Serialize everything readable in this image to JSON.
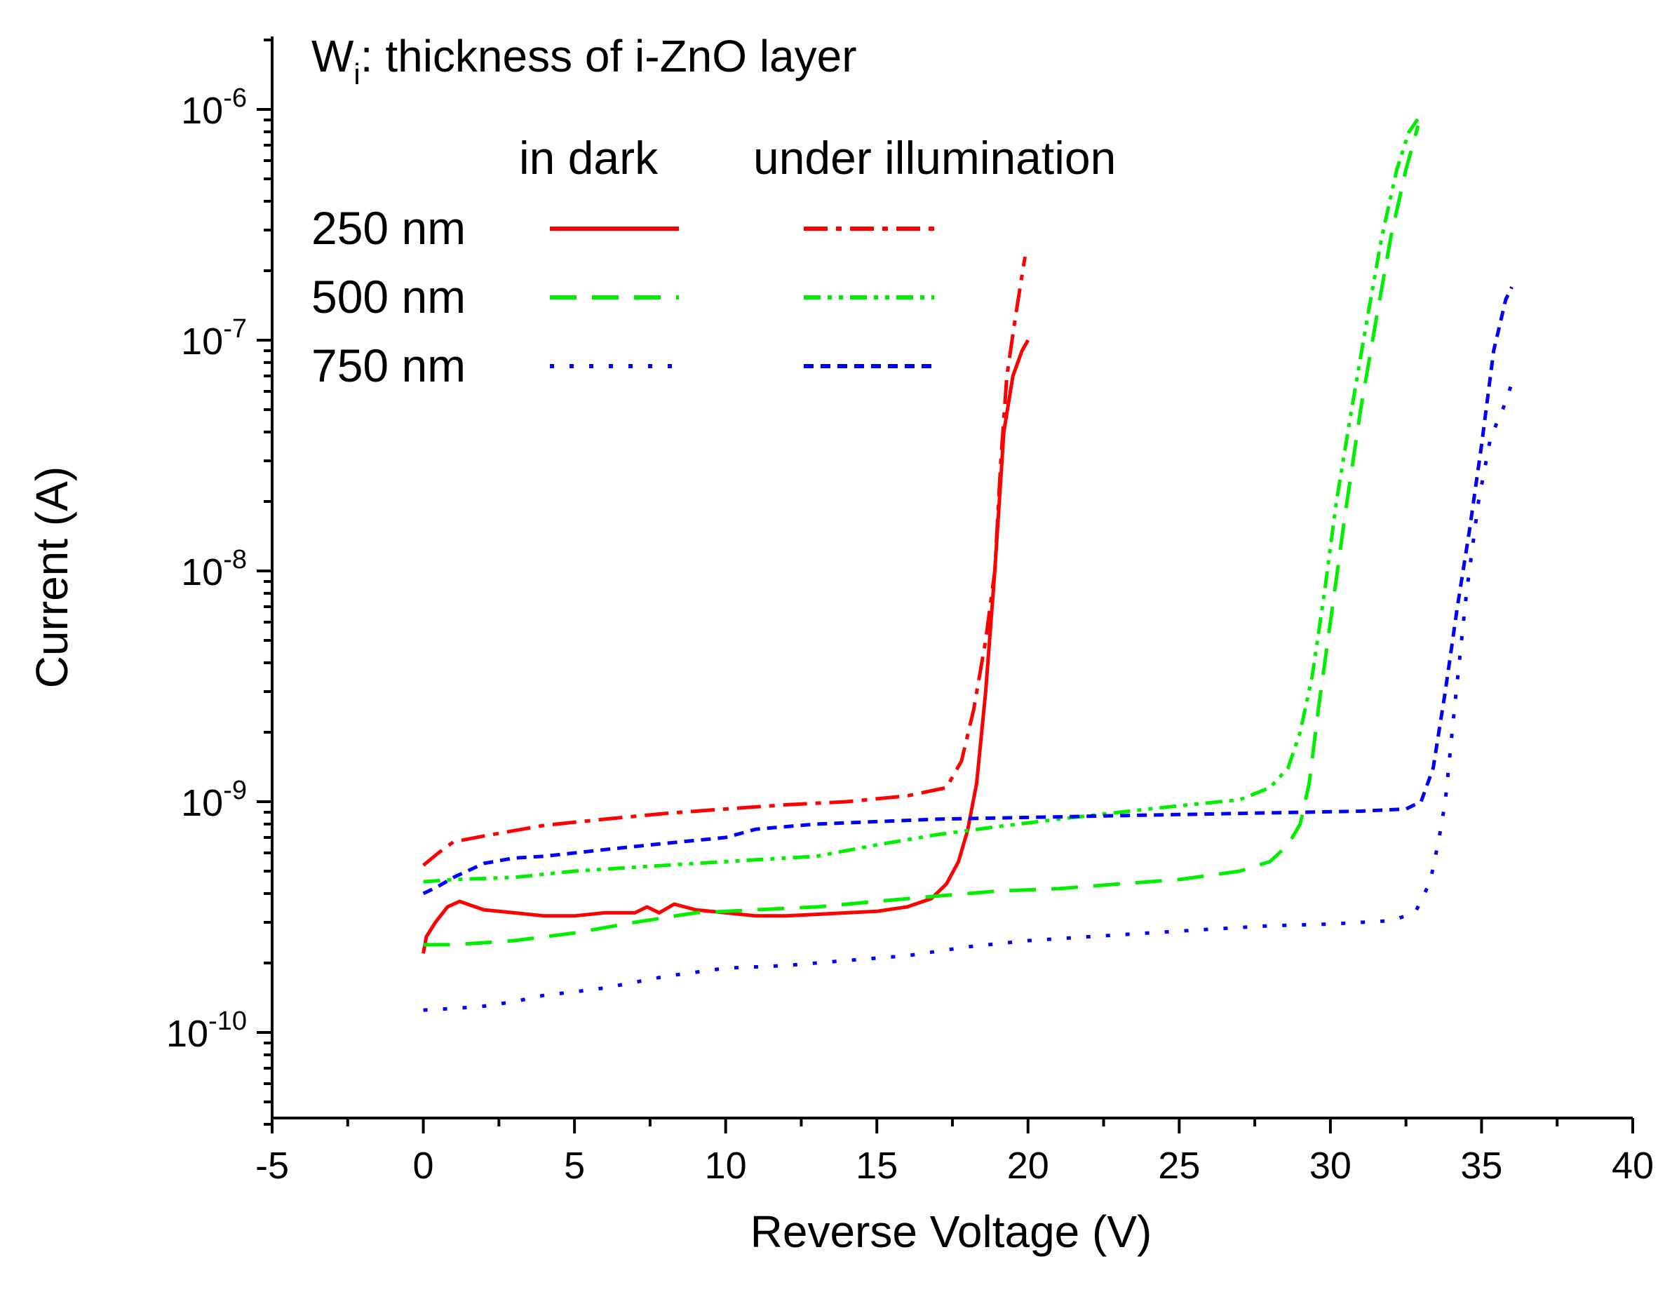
{
  "chart_data": {
    "type": "line",
    "annotation": "W",
    "annotation_sub": "i",
    "annotation_rest": ": thickness of i-ZnO layer",
    "xlabel": "Reverse Voltage (V)",
    "ylabel": "Current (A)",
    "xlim": [
      -5,
      40
    ],
    "ylim": [
      4e-11,
      2e-06
    ],
    "yscale": "log",
    "x_ticks": [
      -5,
      0,
      5,
      10,
      15,
      20,
      25,
      30,
      35,
      40
    ],
    "x_tick_labels": [
      "-5",
      "0",
      "5",
      "10",
      "15",
      "20",
      "25",
      "30",
      "35",
      "40"
    ],
    "y_tick_exponents": [
      -10,
      -9,
      -8,
      -7,
      -6
    ],
    "y_tick_base": "10",
    "y_tick_labels_exp": [
      "-10",
      "-9",
      "-8",
      "-7",
      "-6"
    ],
    "legend": {
      "header_dark": "in dark",
      "header_light": "under illumination",
      "rows": [
        "250 nm",
        "500 nm",
        "750 nm"
      ],
      "placement": "top-left"
    },
    "series": [
      {
        "name": "250 nm in dark",
        "color": "#ff0000",
        "style": "solid",
        "points": [
          [
            0,
            2.2e-10
          ],
          [
            0.1,
            2.6e-10
          ],
          [
            0.4,
            3e-10
          ],
          [
            0.8,
            3.5e-10
          ],
          [
            1.2,
            3.7e-10
          ],
          [
            2,
            3.4e-10
          ],
          [
            3,
            3.3e-10
          ],
          [
            4,
            3.2e-10
          ],
          [
            5,
            3.2e-10
          ],
          [
            6,
            3.3e-10
          ],
          [
            7,
            3.3e-10
          ],
          [
            7.4,
            3.5e-10
          ],
          [
            7.8,
            3.3e-10
          ],
          [
            8.3,
            3.6e-10
          ],
          [
            9,
            3.4e-10
          ],
          [
            10,
            3.3e-10
          ],
          [
            11,
            3.2e-10
          ],
          [
            12,
            3.2e-10
          ],
          [
            13,
            3.25e-10
          ],
          [
            14,
            3.3e-10
          ],
          [
            15,
            3.35e-10
          ],
          [
            16,
            3.5e-10
          ],
          [
            16.8,
            3.8e-10
          ],
          [
            17.3,
            4.4e-10
          ],
          [
            17.7,
            5.5e-10
          ],
          [
            18,
            7.5e-10
          ],
          [
            18.3,
            1.2e-09
          ],
          [
            18.6,
            3e-09
          ],
          [
            18.9,
            1e-08
          ],
          [
            19.2,
            4e-08
          ],
          [
            19.5,
            7e-08
          ],
          [
            19.8,
            9e-08
          ],
          [
            20,
            1e-07
          ]
        ]
      },
      {
        "name": "250 nm under illumination",
        "color": "#ff0000",
        "style": "dashdot",
        "points": [
          [
            0,
            5.3e-10
          ],
          [
            0.5,
            6e-10
          ],
          [
            1,
            6.7e-10
          ],
          [
            2,
            7.1e-10
          ],
          [
            4,
            7.9e-10
          ],
          [
            6,
            8.4e-10
          ],
          [
            8,
            8.9e-10
          ],
          [
            10,
            9.3e-10
          ],
          [
            12,
            9.7e-10
          ],
          [
            14,
            1e-09
          ],
          [
            16,
            1.06e-09
          ],
          [
            17.3,
            1.15e-09
          ],
          [
            17.8,
            1.5e-09
          ],
          [
            18.2,
            2.5e-09
          ],
          [
            18.6,
            5e-09
          ],
          [
            18.9,
            1e-08
          ],
          [
            19.1,
            3e-08
          ],
          [
            19.3,
            7e-08
          ],
          [
            19.6,
            1.3e-07
          ],
          [
            19.9,
            2.3e-07
          ]
        ]
      },
      {
        "name": "500 nm in dark",
        "color": "#00ee00",
        "style": "dashed",
        "points": [
          [
            0,
            2.4e-10
          ],
          [
            1,
            2.4e-10
          ],
          [
            3,
            2.5e-10
          ],
          [
            5,
            2.7e-10
          ],
          [
            7,
            3e-10
          ],
          [
            9,
            3.3e-10
          ],
          [
            11,
            3.4e-10
          ],
          [
            13,
            3.5e-10
          ],
          [
            15,
            3.7e-10
          ],
          [
            17,
            3.9e-10
          ],
          [
            19,
            4.1e-10
          ],
          [
            21,
            4.2e-10
          ],
          [
            23,
            4.4e-10
          ],
          [
            25,
            4.6e-10
          ],
          [
            27,
            5e-10
          ],
          [
            28,
            5.5e-10
          ],
          [
            28.6,
            6.5e-10
          ],
          [
            29,
            8e-10
          ],
          [
            29.3,
            1.2e-09
          ],
          [
            29.6,
            2.5e-09
          ],
          [
            30,
            6e-09
          ],
          [
            30.5,
            1.8e-08
          ],
          [
            31,
            5e-08
          ],
          [
            31.5,
            1.2e-07
          ],
          [
            32,
            2.8e-07
          ],
          [
            32.5,
            5.5e-07
          ],
          [
            32.9,
            8.5e-07
          ]
        ]
      },
      {
        "name": "500 nm under illumination",
        "color": "#00ee00",
        "style": "dashdotdot",
        "points": [
          [
            0,
            4.5e-10
          ],
          [
            1,
            4.6e-10
          ],
          [
            3,
            4.7e-10
          ],
          [
            5,
            5e-10
          ],
          [
            7,
            5.2e-10
          ],
          [
            9,
            5.4e-10
          ],
          [
            11,
            5.6e-10
          ],
          [
            13,
            5.8e-10
          ],
          [
            15,
            6.5e-10
          ],
          [
            17,
            7.2e-10
          ],
          [
            19,
            7.8e-10
          ],
          [
            21,
            8.4e-10
          ],
          [
            23,
            9e-10
          ],
          [
            25,
            9.6e-10
          ],
          [
            27,
            1.02e-09
          ],
          [
            28,
            1.15e-09
          ],
          [
            28.6,
            1.4e-09
          ],
          [
            29,
            2e-09
          ],
          [
            29.4,
            3.5e-09
          ],
          [
            29.8,
            8e-09
          ],
          [
            30.2,
            2e-08
          ],
          [
            30.7,
            5e-08
          ],
          [
            31.2,
            1.2e-07
          ],
          [
            31.7,
            2.8e-07
          ],
          [
            32.2,
            5.5e-07
          ],
          [
            32.6,
            8e-07
          ],
          [
            33,
            9.5e-07
          ]
        ]
      },
      {
        "name": "750 nm in dark",
        "color": "#0000ff",
        "style": "dotted",
        "points": [
          [
            0,
            1.25e-10
          ],
          [
            1,
            1.27e-10
          ],
          [
            2,
            1.3e-10
          ],
          [
            3,
            1.36e-10
          ],
          [
            4,
            1.45e-10
          ],
          [
            5,
            1.5e-10
          ],
          [
            6,
            1.56e-10
          ],
          [
            7,
            1.65e-10
          ],
          [
            8,
            1.75e-10
          ],
          [
            10,
            1.9e-10
          ],
          [
            12,
            1.95e-10
          ],
          [
            14,
            2.05e-10
          ],
          [
            16,
            2.15e-10
          ],
          [
            18,
            2.35e-10
          ],
          [
            20,
            2.5e-10
          ],
          [
            22,
            2.6e-10
          ],
          [
            24,
            2.7e-10
          ],
          [
            26,
            2.8e-10
          ],
          [
            28,
            2.9e-10
          ],
          [
            30,
            2.95e-10
          ],
          [
            32,
            3.05e-10
          ],
          [
            32.8,
            3.3e-10
          ],
          [
            33.3,
            4.5e-10
          ],
          [
            33.6,
            7e-10
          ],
          [
            33.8,
            1e-09
          ],
          [
            34.1,
            2.5e-09
          ],
          [
            34.5,
            8e-09
          ],
          [
            34.9,
            2e-08
          ],
          [
            35.3,
            3.8e-08
          ],
          [
            35.7,
            5e-08
          ],
          [
            36,
            6.5e-08
          ]
        ]
      },
      {
        "name": "750 nm under illumination",
        "color": "#0000ff",
        "style": "shortdash",
        "points": [
          [
            0,
            4e-10
          ],
          [
            0.5,
            4.3e-10
          ],
          [
            1,
            4.7e-10
          ],
          [
            2,
            5.4e-10
          ],
          [
            3,
            5.7e-10
          ],
          [
            4,
            5.8e-10
          ],
          [
            6,
            6.2e-10
          ],
          [
            8,
            6.6e-10
          ],
          [
            10,
            7e-10
          ],
          [
            11,
            7.6e-10
          ],
          [
            13,
            8e-10
          ],
          [
            15,
            8.2e-10
          ],
          [
            17,
            8.4e-10
          ],
          [
            19,
            8.5e-10
          ],
          [
            21,
            8.6e-10
          ],
          [
            23,
            8.7e-10
          ],
          [
            25,
            8.8e-10
          ],
          [
            27,
            8.9e-10
          ],
          [
            29,
            9e-10
          ],
          [
            31,
            9.1e-10
          ],
          [
            32.5,
            9.3e-10
          ],
          [
            33,
            1e-09
          ],
          [
            33.4,
            1.4e-09
          ],
          [
            33.8,
            3e-09
          ],
          [
            34.2,
            7e-09
          ],
          [
            34.6,
            1.5e-08
          ],
          [
            35,
            3.5e-08
          ],
          [
            35.4,
            9e-08
          ],
          [
            35.8,
            1.5e-07
          ],
          [
            36,
            1.7e-07
          ]
        ]
      }
    ]
  }
}
